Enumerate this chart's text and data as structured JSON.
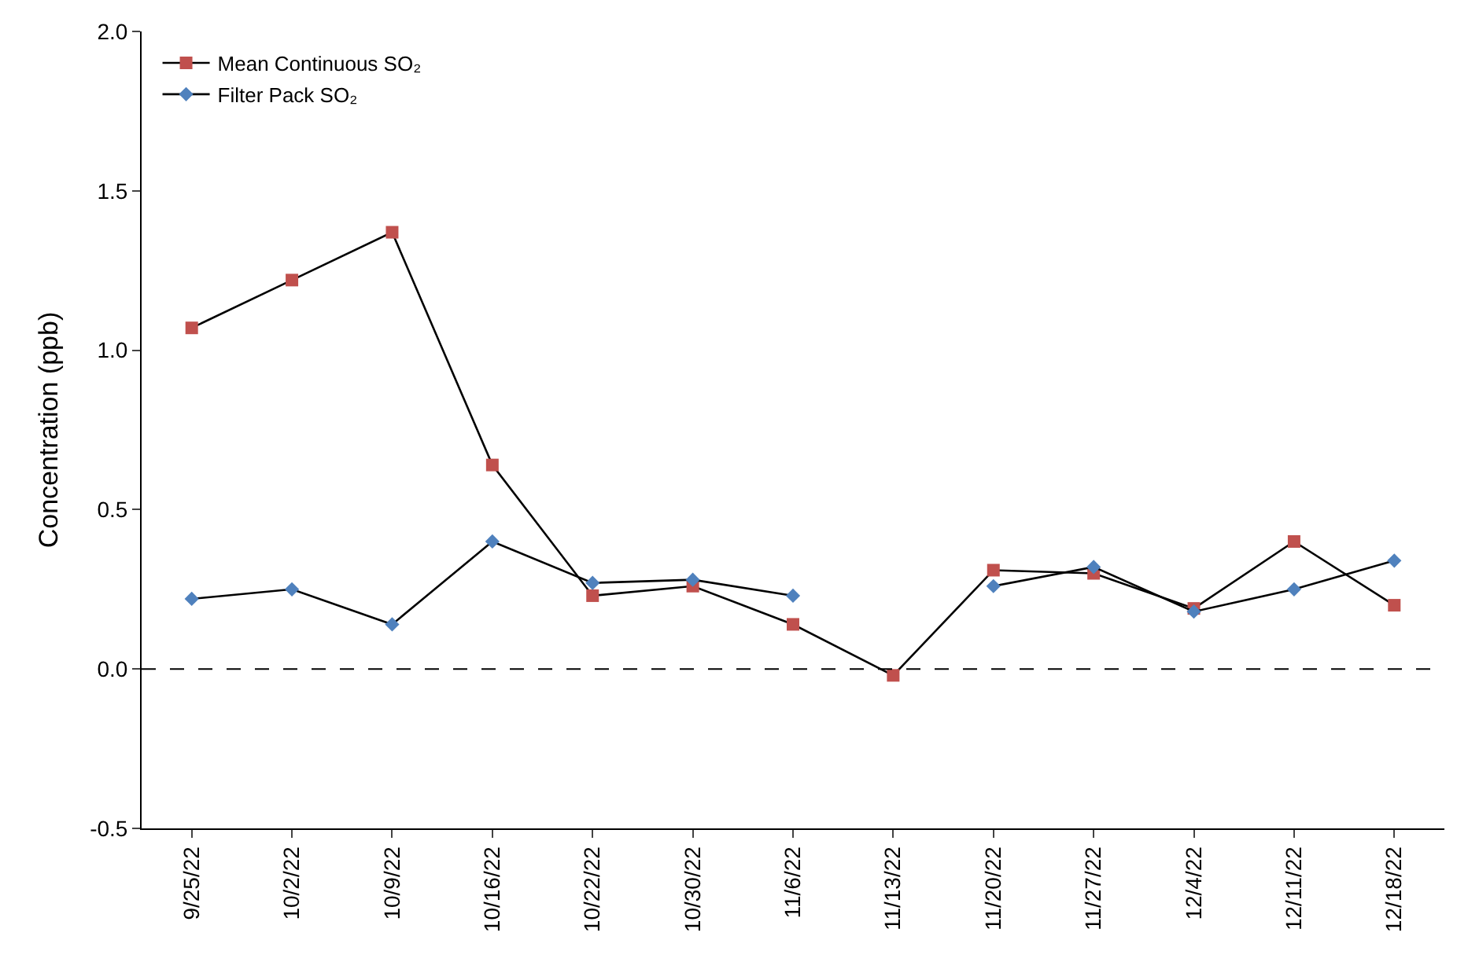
{
  "chart_data": {
    "type": "line",
    "ylabel": "Concentration (ppb)",
    "categories": [
      "9/25/22",
      "10/2/22",
      "10/9/22",
      "10/16/22",
      "10/22/22",
      "10/30/22",
      "11/6/22",
      "11/13/22",
      "11/20/22",
      "11/27/22",
      "12/4/22",
      "12/11/22",
      "12/18/22"
    ],
    "series": [
      {
        "name": "Mean Continuous SO₂",
        "color": "#c0504d",
        "marker": "square",
        "values": [
          1.07,
          1.22,
          1.37,
          0.64,
          0.23,
          0.26,
          0.14,
          -0.02,
          0.31,
          0.3,
          0.19,
          0.4,
          0.2
        ]
      },
      {
        "name": "Filter Pack SO₂",
        "color": "#4f81bd",
        "marker": "diamond",
        "values": [
          0.22,
          0.25,
          0.14,
          0.4,
          0.27,
          0.28,
          0.23,
          null,
          0.26,
          0.32,
          0.18,
          0.25,
          0.34
        ]
      }
    ],
    "ylim": [
      -0.5,
      2.0
    ],
    "yticks": [
      {
        "value": -0.5,
        "label": "-0.5"
      },
      {
        "value": 0,
        "label": "0.0"
      },
      {
        "value": 0.5,
        "label": "0.5"
      },
      {
        "value": 1.0,
        "label": "1.0"
      },
      {
        "value": 1.5,
        "label": "1.5"
      },
      {
        "value": 2.0,
        "label": "2.0"
      }
    ],
    "ref_lines": [
      {
        "axis": "y",
        "value": 0,
        "color": "#000000",
        "line_style": "dashed"
      }
    ],
    "legend": "top left",
    "line_style": "solid"
  }
}
